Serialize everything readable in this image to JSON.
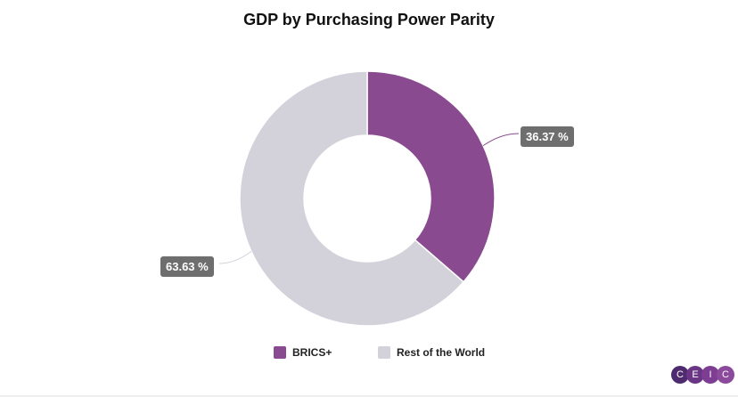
{
  "chart_data": {
    "type": "pie",
    "title": "GDP by Purchasing Power Parity",
    "categories": [
      "BRICS+",
      "Rest of the World"
    ],
    "values": [
      36.37,
      63.63
    ],
    "labels": [
      "36.37 %",
      "63.63 %"
    ],
    "colors": [
      "#8a4a8f",
      "#d3d2da"
    ],
    "donut": true,
    "legend": "bottom"
  },
  "logo": {
    "letters": [
      "C",
      "E",
      "I",
      "C"
    ],
    "colors": [
      "#4e2a6e",
      "#6a3585",
      "#7d3d93",
      "#8b4a9c"
    ]
  }
}
